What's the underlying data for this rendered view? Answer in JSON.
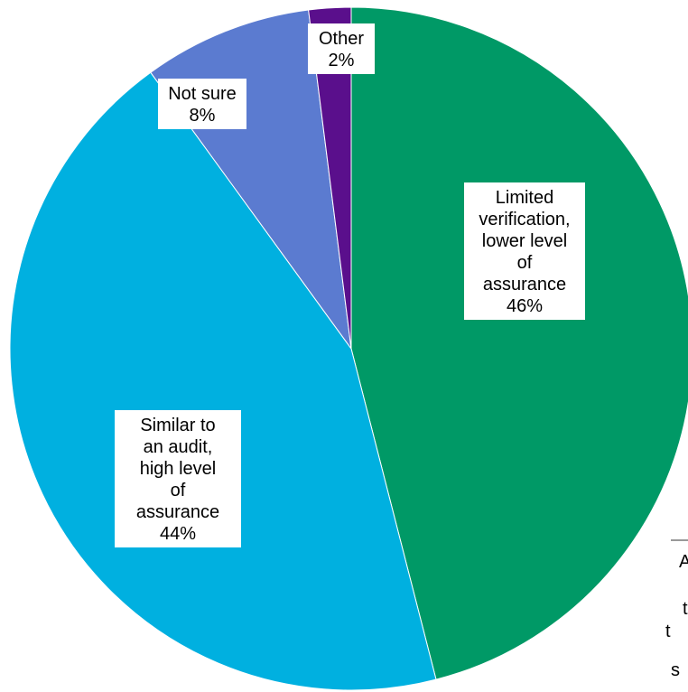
{
  "chart_data": {
    "type": "pie",
    "slices": [
      {
        "label_lines": [
          "Limited",
          "verification,",
          "lower level",
          "of",
          "assurance"
        ],
        "value_text": "46%",
        "value": 46,
        "color": "#009966"
      },
      {
        "label_lines": [
          "Similar to",
          "an audit,",
          "high level",
          "of",
          "assurance"
        ],
        "value_text": "44%",
        "value": 44,
        "color": "#00B0E0"
      },
      {
        "label_lines": [
          "Not sure"
        ],
        "value_text": "8%",
        "value": 8,
        "color": "#5B7BD0"
      },
      {
        "label_lines": [
          "Other"
        ],
        "value_text": "2%",
        "value": 2,
        "color": "#5A0F8C"
      }
    ],
    "partial_text": [
      "A",
      "t",
      "t",
      "s"
    ],
    "title": "",
    "legend": "none"
  }
}
